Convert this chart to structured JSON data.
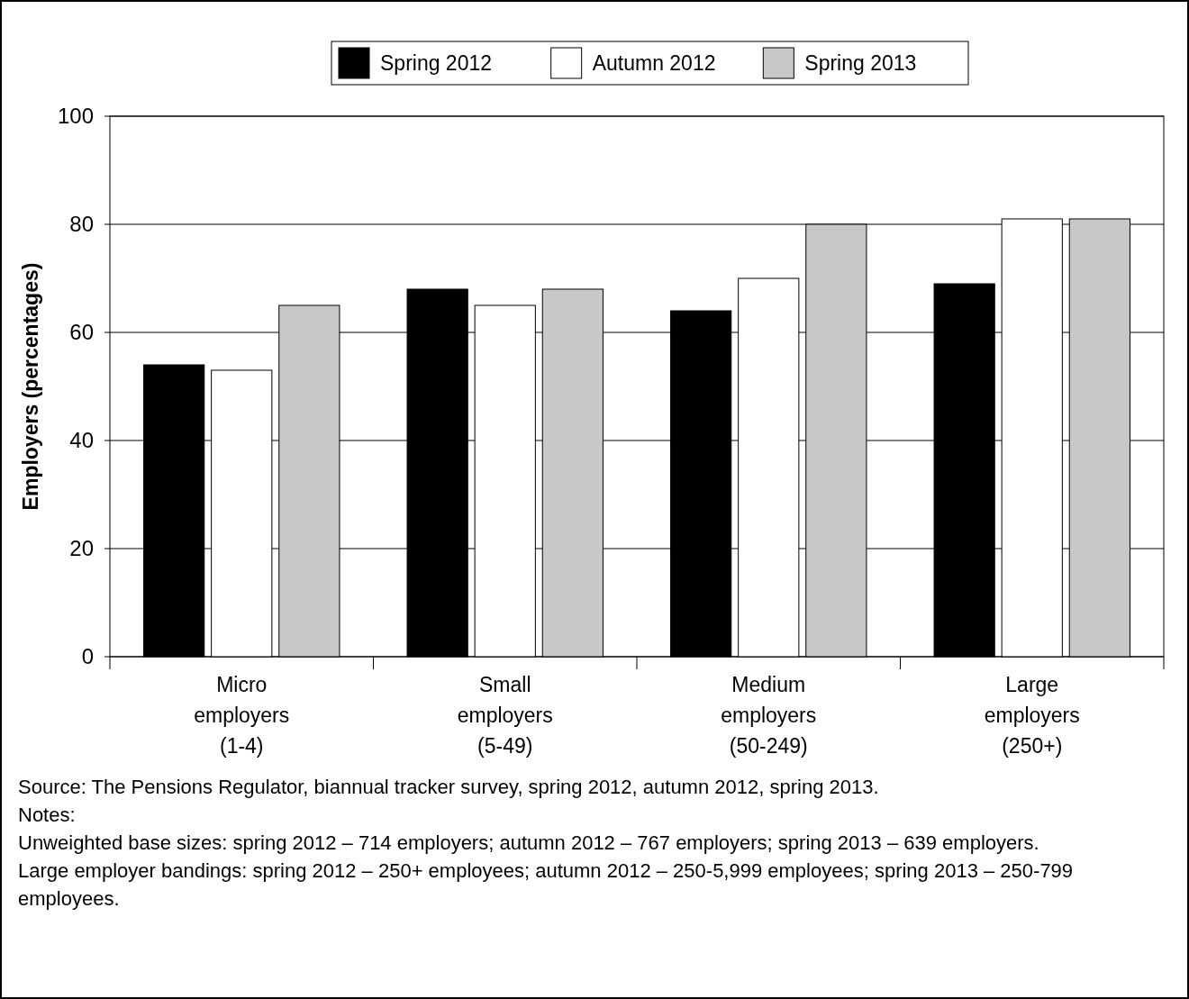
{
  "chart_data": {
    "type": "bar",
    "ylabel": "Employers (percentages)",
    "categories": [
      "Micro employers (1-4)",
      "Small employers (5-49)",
      "Medium employers (50-249)",
      "Large employers (250+)"
    ],
    "series": [
      {
        "name": "Spring 2012",
        "color": "#000000",
        "values": [
          54,
          68,
          64,
          69
        ]
      },
      {
        "name": "Autumn 2012",
        "color": "#ffffff",
        "values": [
          53,
          65,
          70,
          81
        ]
      },
      {
        "name": "Spring 2013",
        "color": "#c8c8c8",
        "values": [
          65,
          68,
          80,
          81
        ]
      }
    ],
    "ylim": [
      0,
      100
    ],
    "yticks": [
      0,
      20,
      40,
      60,
      80,
      100
    ],
    "grid": "y",
    "legend": "top",
    "annotations": [
      "Source: The Pensions Regulator, biannual tracker survey, spring 2012, autumn 2012, spring 2013.",
      "Notes:",
      "Unweighted base sizes: spring 2012 – 714 employers; autumn 2012 – 767 employers; spring 2013 – 639 employers.",
      "Large employer bandings: spring 2012 – 250+ employees; autumn 2012 – 250-5,999 employees; spring 2013 – 250-799 employees."
    ]
  }
}
